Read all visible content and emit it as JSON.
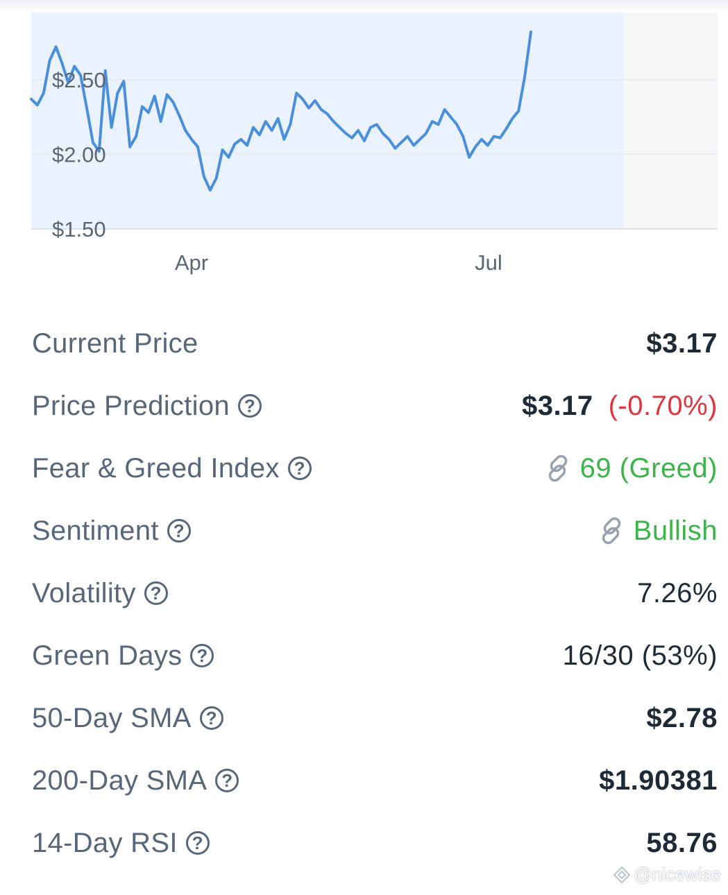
{
  "chart_data": {
    "type": "area",
    "y_tick_labels": [
      "$2.50",
      "$2.00",
      "$1.50"
    ],
    "y_ticks": [
      2.5,
      2.0,
      1.5
    ],
    "x_tick_labels": [
      "Apr",
      "Jul"
    ],
    "ylim": [
      1.5,
      2.95
    ],
    "grid": true,
    "line_color": "#4a8fd9",
    "fill_color": "#eaf2fd",
    "series": [
      {
        "values": [
          2.37,
          2.33,
          2.41,
          2.63,
          2.72,
          2.61,
          2.48,
          2.59,
          2.53,
          2.31,
          2.08,
          2.02,
          2.56,
          2.18,
          2.41,
          2.49,
          2.05,
          2.12,
          2.32,
          2.28,
          2.39,
          2.22,
          2.4,
          2.35,
          2.26,
          2.16,
          2.1,
          2.05,
          1.85,
          1.76,
          1.84,
          2.03,
          1.98,
          2.07,
          2.1,
          2.06,
          2.18,
          2.13,
          2.22,
          2.16,
          2.24,
          2.1,
          2.2,
          2.41,
          2.37,
          2.31,
          2.36,
          2.3,
          2.27,
          2.22,
          2.18,
          2.14,
          2.11,
          2.16,
          2.09,
          2.18,
          2.2,
          2.14,
          2.1,
          2.04,
          2.08,
          2.12,
          2.06,
          2.1,
          2.14,
          2.22,
          2.2,
          2.3,
          2.25,
          2.2,
          2.12,
          1.98,
          2.05,
          2.1,
          2.06,
          2.12,
          2.11,
          2.17,
          2.24,
          2.29,
          2.52,
          2.82
        ]
      }
    ]
  },
  "stats": [
    {
      "label": "Current Price",
      "value": "$3.17",
      "has_help": false
    },
    {
      "label": "Price Prediction",
      "value": "$3.17",
      "change": "(-0.70%)",
      "has_help": true
    },
    {
      "label": "Fear & Greed Index",
      "value": "69 (Greed)",
      "has_help": true,
      "has_link": true
    },
    {
      "label": "Sentiment",
      "value": "Bullish",
      "has_help": true,
      "has_link": true
    },
    {
      "label": "Volatility",
      "value": "7.26%",
      "has_help": true
    },
    {
      "label": "Green Days",
      "value": "16/30 (53%)",
      "has_help": true
    },
    {
      "label": "50-Day SMA",
      "value": "$2.78",
      "has_help": true
    },
    {
      "label": "200-Day SMA",
      "value": "$1.90381",
      "has_help": true
    },
    {
      "label": "14-Day RSI",
      "value": "58.76",
      "has_help": true
    }
  ],
  "help_symbol": "?",
  "watermark": "@nicewise",
  "colors": {
    "label": "#58667a",
    "value": "#1f2a37",
    "negative": "#e0343f",
    "positive": "#3bb54a"
  },
  "icons": [
    "help-circle-icon",
    "link-icon",
    "watermark-logo-icon"
  ]
}
